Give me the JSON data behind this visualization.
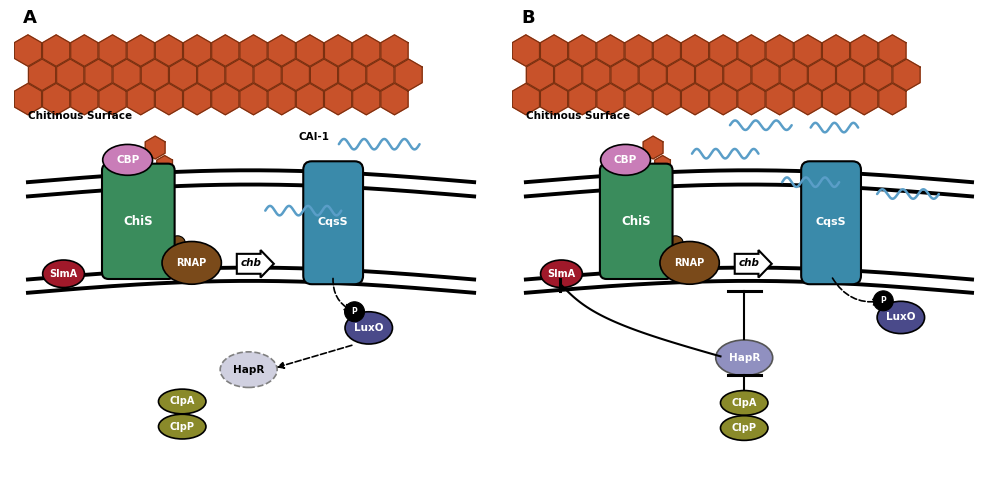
{
  "panel_A_label": "A",
  "panel_B_label": "B",
  "chitinous_surface_label": "Chitinous Surface",
  "cai1_label": "CAI-1",
  "hexagon_color": "#C8522A",
  "hexagon_edge_color": "#7A3010",
  "ChiS_color": "#3A8C5C",
  "ChiS_label": "ChiS",
  "CBP_color": "#C97DB8",
  "CBP_label": "CBP",
  "RNAP_color": "#7A4A1A",
  "RNAP_label": "RNAP",
  "SlmA_color": "#A0192A",
  "SlmA_label": "SlmA",
  "CqsS_color": "#3A8AAA",
  "CqsS_label": "CqsS",
  "LuxO_color": "#4A4A8A",
  "LuxO_label": "LuxO",
  "HapR_A_color": "#D0D0E0",
  "HapR_B_color": "#9090C0",
  "HapR_label": "HapR",
  "ClpA_color": "#8A8A2A",
  "ClpA_label": "ClpA",
  "ClpP_label": "ClpP",
  "chb_label": "chb",
  "cai1_wave_color": "#5A9EC8",
  "P_label": "P",
  "bg_color": "white"
}
